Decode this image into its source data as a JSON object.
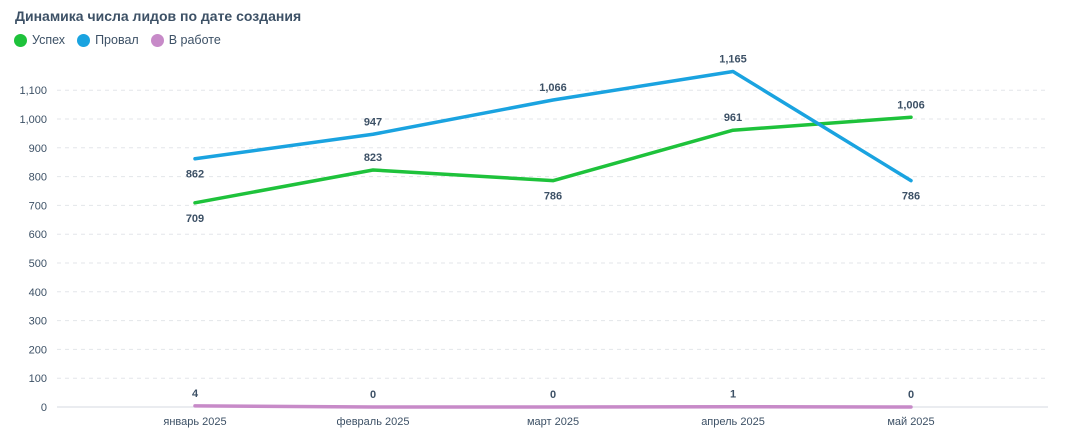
{
  "title": "Динамика числа лидов по дате создания",
  "legend": [
    {
      "label": "Успех",
      "color": "#1ec23b"
    },
    {
      "label": "Провал",
      "color": "#1aa3e0"
    },
    {
      "label": "В работе",
      "color": "#c78ac8"
    }
  ],
  "chart_data": {
    "type": "line",
    "title": "Динамика числа лидов по дате создания",
    "categories": [
      "январь 2025",
      "февраль 2025",
      "март 2025",
      "апрель 2025",
      "май 2025"
    ],
    "y_ticks": [
      "0",
      "100",
      "200",
      "300",
      "400",
      "500",
      "600",
      "700",
      "800",
      "900",
      "1,000",
      "1,100"
    ],
    "ylim": [
      0,
      1200
    ],
    "grid": true,
    "legend_position": "top-left",
    "series": [
      {
        "name": "Успех",
        "color": "#1ec23b",
        "values": [
          709,
          823,
          786,
          961,
          1006
        ],
        "labels": [
          "709",
          "823",
          "786",
          "961",
          "1,006"
        ]
      },
      {
        "name": "Провал",
        "color": "#1aa3e0",
        "values": [
          862,
          947,
          1066,
          1165,
          786
        ],
        "labels": [
          "862",
          "947",
          "1,066",
          "1,165",
          "786"
        ]
      },
      {
        "name": "В работе",
        "color": "#c78ac8",
        "values": [
          4,
          0,
          0,
          1,
          0
        ],
        "labels": [
          "4",
          "0",
          "0",
          "1",
          "0"
        ]
      }
    ]
  }
}
